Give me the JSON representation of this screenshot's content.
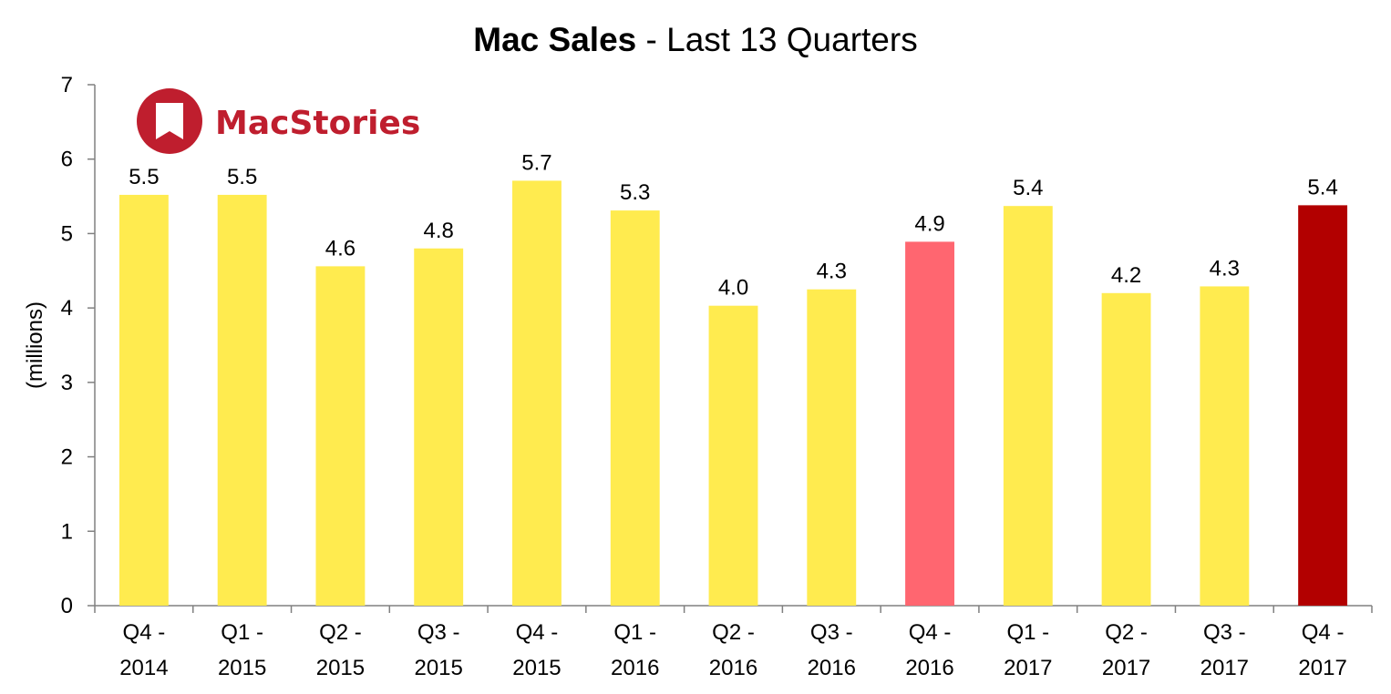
{
  "chart_data": {
    "type": "bar",
    "title": "Mac Sales",
    "subtitle": "- Last 13 Quarters",
    "ylabel": "(millions)",
    "xlabel": "",
    "ylim": [
      0,
      7
    ],
    "yticks": [
      0,
      1,
      2,
      3,
      4,
      5,
      6,
      7
    ],
    "categories": [
      [
        "Q4 -",
        "2014"
      ],
      [
        "Q1 -",
        "2015"
      ],
      [
        "Q2 -",
        "2015"
      ],
      [
        "Q3 -",
        "2015"
      ],
      [
        "Q4 -",
        "2015"
      ],
      [
        "Q1 -",
        "2016"
      ],
      [
        "Q2 -",
        "2016"
      ],
      [
        "Q3 -",
        "2016"
      ],
      [
        "Q4 -",
        "2016"
      ],
      [
        "Q1 -",
        "2017"
      ],
      [
        "Q2 -",
        "2017"
      ],
      [
        "Q3 -",
        "2017"
      ],
      [
        "Q4 -",
        "2017"
      ]
    ],
    "values": [
      5.52,
      5.52,
      4.56,
      4.8,
      5.71,
      5.31,
      4.03,
      4.25,
      4.89,
      5.37,
      4.2,
      4.29,
      5.38
    ],
    "data_labels": [
      "5.5",
      "5.5",
      "4.6",
      "4.8",
      "5.7",
      "5.3",
      "4.0",
      "4.3",
      "4.9",
      "5.4",
      "4.2",
      "4.3",
      "5.4"
    ],
    "bar_colors": [
      "#FFEB4F",
      "#FFEB4F",
      "#FFEB4F",
      "#FFEB4F",
      "#FFEB4F",
      "#FFEB4F",
      "#FFEB4F",
      "#FFEB4F",
      "#FF6670",
      "#FFEB4F",
      "#FFEB4F",
      "#FFEB4F",
      "#B20000"
    ],
    "grid": false,
    "legend": "none"
  },
  "brand": {
    "name": "MacStories",
    "color": "#BF1E2E",
    "icon": "bookmark-badge-icon"
  }
}
